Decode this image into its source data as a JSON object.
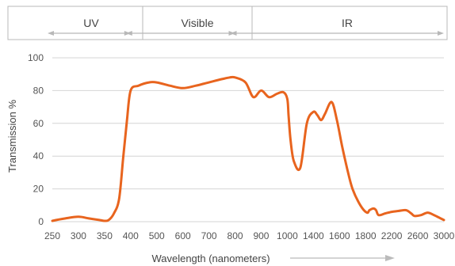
{
  "chart_data": {
    "type": "line",
    "title": "",
    "xlabel": "Wavelength (nanometers)",
    "ylabel": "Transmission %",
    "ylim": [
      0,
      100
    ],
    "yticks": [
      0,
      20,
      40,
      60,
      80,
      100
    ],
    "xtick_labels": [
      "250",
      "300",
      "350",
      "400",
      "500",
      "600",
      "700",
      "800",
      "900",
      "1000",
      "1400",
      "1600",
      "1800",
      "2200",
      "2600",
      "3000"
    ],
    "grid": "horizontal",
    "bands": [
      {
        "label": "UV",
        "from": "250",
        "to": "400"
      },
      {
        "label": "Visible",
        "from": "400",
        "to": "800"
      },
      {
        "label": "IR",
        "from": "800",
        "to": "3000"
      }
    ],
    "line_color": "#e8641e",
    "series": [
      {
        "x": [
          250,
          275,
          300,
          320,
          340,
          350,
          358,
          368,
          378,
          386,
          393,
          400,
          430,
          470,
          500,
          550,
          600,
          650,
          700,
          750,
          780,
          800,
          840,
          870,
          900,
          930,
          960,
          985,
          1000,
          1020,
          1050,
          1100,
          1200,
          1300,
          1400,
          1430,
          1460,
          1490,
          1540,
          1580,
          1620,
          1660,
          1700,
          1760,
          1820,
          1860,
          1920,
          1960,
          2000,
          2100,
          2200,
          2300,
          2420,
          2500,
          2550,
          2650,
          2750,
          2850,
          2950,
          3000
        ],
        "y": [
          0.5,
          2,
          3,
          2,
          1,
          0.5,
          1,
          5,
          14,
          40,
          62,
          80,
          83,
          85,
          85,
          83,
          81.5,
          83,
          85,
          87,
          88,
          88,
          85,
          76,
          80,
          76,
          78,
          79,
          75,
          65,
          50,
          37,
          33,
          60,
          67,
          65,
          62,
          66,
          73,
          62,
          46,
          32,
          20,
          10,
          5.5,
          7,
          8,
          7,
          4,
          5,
          6,
          6.5,
          7,
          5,
          3.5,
          4,
          5.5,
          4,
          2,
          1
        ]
      }
    ]
  }
}
